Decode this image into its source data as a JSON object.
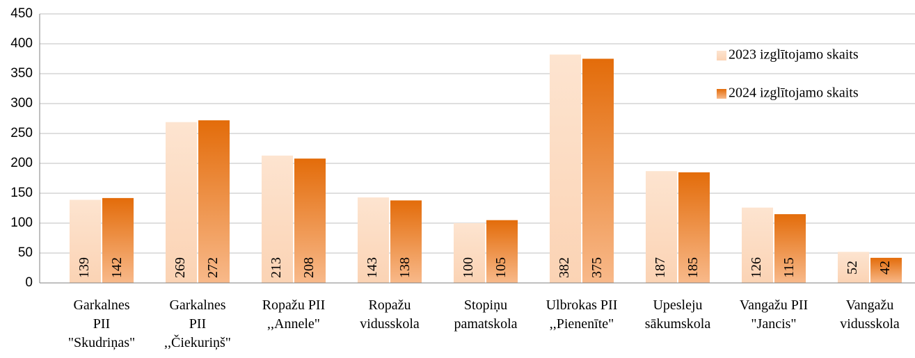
{
  "chart_data": {
    "type": "bar",
    "categories": [
      "Garkalnes\nPII\n\"Skudriņas\"",
      "Garkalnes\nPII\n,,Čiekuriņš\"",
      "Ropažu PII\n,,Annele\"",
      "Ropažu\nvidusskola",
      "Stopiņu\npamatskola",
      "Ulbrokas PII\n,,Pienenīte\"",
      "Upesleju\nsākumskola",
      "Vangažu PII\n\"Jancis\"",
      "Vangažu\nvidusskola"
    ],
    "series": [
      {
        "name": "2023 izglītojamo skaits",
        "color": "#fbd3b4",
        "values": [
          139,
          269,
          213,
          143,
          100,
          382,
          187,
          126,
          52
        ]
      },
      {
        "name": "2024 izglītojamo skaits",
        "color": "#e36c0a",
        "values": [
          142,
          272,
          208,
          138,
          105,
          375,
          185,
          115,
          42
        ]
      }
    ],
    "ylim": [
      0,
      450
    ],
    "yticks": [
      0,
      50,
      100,
      150,
      200,
      250,
      300,
      350,
      400,
      450
    ],
    "grid": true,
    "legend": "top-right"
  }
}
